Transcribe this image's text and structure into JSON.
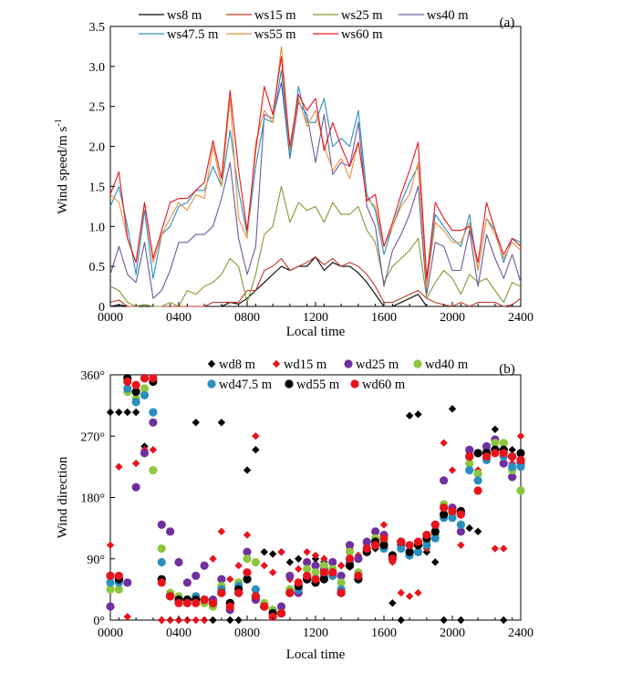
{
  "chart_data": [
    {
      "type": "line",
      "panel_label": "(a)",
      "xlabel": "Local time",
      "ylabel": "Wind speed/m s",
      "ylabel_sup": "-1",
      "x_ticks": [
        {
          "value": 0,
          "label": "0000"
        },
        {
          "value": 400,
          "label": "0400"
        },
        {
          "value": 800,
          "label": "0800"
        },
        {
          "value": 1200,
          "label": "1200"
        },
        {
          "value": 1600,
          "label": "1600"
        },
        {
          "value": 2000,
          "label": "2000"
        },
        {
          "value": 2400,
          "label": "2400"
        }
      ],
      "y_ticks": [
        "0",
        "0.5",
        "1.0",
        "1.5",
        "2.0",
        "2.5",
        "3.0",
        "3.5"
      ],
      "xlim": [
        0,
        2400
      ],
      "ylim": [
        0,
        3.5
      ],
      "legend_position": "top",
      "x": [
        0,
        50,
        100,
        150,
        200,
        250,
        300,
        350,
        400,
        450,
        500,
        550,
        600,
        650,
        700,
        750,
        800,
        850,
        900,
        950,
        1000,
        1050,
        1100,
        1150,
        1200,
        1250,
        1300,
        1350,
        1400,
        1450,
        1500,
        1550,
        1600,
        1650,
        1700,
        1750,
        1800,
        1850,
        1900,
        1950,
        2000,
        2050,
        2100,
        2150,
        2200,
        2250,
        2300,
        2350,
        2400
      ],
      "series": [
        {
          "name": "ws8 m",
          "color": "#000000",
          "values": [
            0.0,
            0.02,
            0.0,
            0.0,
            0.02,
            0.0,
            0.0,
            0.0,
            0.0,
            0.0,
            0.0,
            0.0,
            0.0,
            0.0,
            0.05,
            0.03,
            0.1,
            0.2,
            0.3,
            0.4,
            0.5,
            0.45,
            0.5,
            0.5,
            0.62,
            0.45,
            0.55,
            0.5,
            0.5,
            0.42,
            0.3,
            0.15,
            0.0,
            0.0,
            0.05,
            0.1,
            0.15,
            0.0,
            0.0,
            0.0,
            0.0,
            0.0,
            0.0,
            0.0,
            0.0,
            0.0,
            0.0,
            0.0,
            0.0
          ]
        },
        {
          "name": "ws15 m",
          "color": "#c0392b",
          "values": [
            0.05,
            0.08,
            0.0,
            0.0,
            0.02,
            0.0,
            0.0,
            0.0,
            0.0,
            0.0,
            0.0,
            0.0,
            0.05,
            0.05,
            0.05,
            0.05,
            0.2,
            0.2,
            0.45,
            0.5,
            0.6,
            0.45,
            0.5,
            0.55,
            0.62,
            0.52,
            0.6,
            0.5,
            0.55,
            0.5,
            0.4,
            0.25,
            0.05,
            0.05,
            0.1,
            0.15,
            0.2,
            0.1,
            0.05,
            0.02,
            0.0,
            0.05,
            0.0,
            0.05,
            0.05,
            0.05,
            0.0,
            0.02,
            0.1
          ]
        },
        {
          "name": "ws25 m",
          "color": "#7f9a35",
          "values": [
            0.25,
            0.2,
            0.05,
            0.0,
            0.02,
            0.0,
            0.0,
            0.05,
            0.0,
            0.2,
            0.15,
            0.25,
            0.3,
            0.4,
            0.6,
            0.5,
            0.05,
            0.4,
            0.9,
            1.0,
            1.5,
            1.05,
            1.3,
            1.2,
            1.25,
            1.05,
            1.3,
            1.15,
            1.15,
            1.25,
            0.95,
            0.8,
            0.3,
            0.5,
            0.6,
            0.7,
            0.85,
            0.1,
            0.3,
            0.45,
            0.35,
            0.15,
            0.4,
            0.3,
            0.35,
            0.2,
            0.05,
            0.3,
            0.25
          ]
        },
        {
          "name": "ws40 m",
          "color": "#6a5a9e",
          "values": [
            0.4,
            0.75,
            0.4,
            0.3,
            0.8,
            0.1,
            0.2,
            0.45,
            0.8,
            0.8,
            0.9,
            0.9,
            1.0,
            1.35,
            1.8,
            0.85,
            0.4,
            0.75,
            2.4,
            2.35,
            2.8,
            1.85,
            2.55,
            2.4,
            1.8,
            2.4,
            1.65,
            1.8,
            1.75,
            2.3,
            1.25,
            1.0,
            0.25,
            0.7,
            0.9,
            1.15,
            1.5,
            0.15,
            0.8,
            0.75,
            0.45,
            0.45,
            0.95,
            0.25,
            0.9,
            0.6,
            0.35,
            0.65,
            0.3
          ]
        },
        {
          "name": "ws47.5 m",
          "color": "#2a8fbf",
          "values": [
            1.25,
            1.5,
            1.0,
            0.4,
            1.2,
            0.35,
            0.9,
            1.0,
            1.25,
            1.3,
            1.45,
            1.45,
            1.75,
            1.5,
            2.2,
            1.45,
            0.9,
            1.75,
            2.35,
            2.3,
            2.95,
            1.85,
            2.75,
            2.3,
            2.3,
            2.6,
            2.0,
            2.1,
            2.0,
            2.45,
            1.4,
            1.2,
            0.65,
            1.0,
            1.3,
            1.55,
            1.75,
            0.3,
            1.15,
            1.0,
            0.85,
            0.75,
            1.15,
            0.45,
            1.1,
            0.95,
            0.55,
            0.85,
            0.8
          ]
        },
        {
          "name": "ws55 m",
          "color": "#e8913f",
          "values": [
            1.4,
            1.3,
            0.85,
            0.55,
            1.3,
            0.55,
            0.9,
            1.1,
            1.3,
            1.2,
            1.4,
            1.35,
            2.0,
            1.5,
            2.6,
            1.1,
            0.85,
            2.05,
            2.45,
            2.3,
            3.25,
            1.95,
            2.6,
            2.25,
            2.45,
            2.0,
            1.7,
            1.85,
            1.6,
            2.05,
            1.35,
            1.25,
            0.75,
            1.0,
            1.25,
            1.4,
            1.8,
            0.25,
            1.05,
            0.95,
            0.8,
            0.8,
            1.05,
            0.45,
            1.1,
            0.9,
            0.6,
            0.8,
            0.7
          ]
        },
        {
          "name": "ws60 m",
          "color": "#e8141c",
          "values": [
            1.4,
            1.68,
            0.85,
            0.55,
            1.3,
            0.6,
            0.95,
            1.3,
            1.35,
            1.35,
            1.45,
            1.55,
            2.07,
            1.6,
            2.7,
            1.7,
            0.95,
            1.95,
            2.75,
            2.4,
            3.12,
            2.0,
            2.65,
            2.45,
            2.6,
            1.95,
            2.3,
            2.0,
            1.75,
            2.05,
            1.32,
            1.4,
            0.75,
            1.05,
            1.4,
            1.7,
            2.05,
            0.35,
            1.3,
            1.1,
            0.95,
            0.95,
            1.0,
            0.55,
            1.3,
            0.95,
            0.65,
            0.85,
            0.75
          ]
        }
      ]
    },
    {
      "type": "scatter",
      "panel_label": "(b)",
      "xlabel": "Local time",
      "ylabel": "Wind direction",
      "x_ticks": [
        {
          "value": 0,
          "label": "0000"
        },
        {
          "value": 400,
          "label": "0400"
        },
        {
          "value": 800,
          "label": "0800"
        },
        {
          "value": 1200,
          "label": "1200"
        },
        {
          "value": 1600,
          "label": "1600"
        },
        {
          "value": 2000,
          "label": "2000"
        },
        {
          "value": 2400,
          "label": "2400"
        }
      ],
      "y_ticks": [
        "0°",
        "90°",
        "180°",
        "270°",
        "360°"
      ],
      "xlim": [
        0,
        2400
      ],
      "ylim": [
        0,
        360
      ],
      "legend_position": "top",
      "x": [
        0,
        50,
        100,
        150,
        200,
        250,
        300,
        350,
        400,
        450,
        500,
        550,
        600,
        650,
        700,
        750,
        800,
        850,
        900,
        950,
        1000,
        1050,
        1100,
        1150,
        1200,
        1250,
        1300,
        1350,
        1400,
        1450,
        1500,
        1550,
        1600,
        1650,
        1700,
        1750,
        1800,
        1850,
        1900,
        1950,
        2000,
        2050,
        2100,
        2150,
        2200,
        2250,
        2300,
        2350,
        2400
      ],
      "series": [
        {
          "name": "wd8 m",
          "marker": "diamond",
          "color": "#000000",
          "values": [
            305,
            305,
            305,
            305,
            255,
            290,
            0,
            0,
            0,
            0,
            290,
            0,
            0,
            290,
            0,
            0,
            220,
            250,
            100,
            97,
            100,
            85,
            90,
            85,
            90,
            85,
            85,
            80,
            78,
            90,
            100,
            105,
            110,
            25,
            0,
            300,
            302,
            100,
            85,
            0,
            310,
            0,
            135,
            130,
            250,
            280,
            0,
            250,
            245
          ]
        },
        {
          "name": "wd15 m",
          "marker": "diamond",
          "color": "#e8141c",
          "values": [
            110,
            225,
            5,
            230,
            250,
            250,
            0,
            0,
            0,
            0,
            0,
            0,
            90,
            130,
            60,
            80,
            125,
            270,
            80,
            70,
            100,
            60,
            75,
            100,
            95,
            90,
            75,
            80,
            105,
            95,
            110,
            115,
            140,
            85,
            40,
            35,
            40,
            105,
            125,
            260,
            220,
            110,
            245,
            220,
            245,
            105,
            105,
            230,
            270
          ]
        },
        {
          "name": "wd25 m",
          "marker": "circle",
          "color": "#7030a0",
          "values": [
            20,
            60,
            55,
            195,
            245,
            290,
            140,
            130,
            85,
            55,
            65,
            80,
            30,
            60,
            15,
            40,
            100,
            30,
            20,
            15,
            20,
            65,
            40,
            85,
            80,
            75,
            85,
            65,
            110,
            90,
            115,
            130,
            125,
            90,
            110,
            100,
            100,
            125,
            140,
            205,
            165,
            130,
            250,
            245,
            255,
            265,
            230,
            210,
            230
          ]
        },
        {
          "name": "wd40 m",
          "marker": "circle",
          "color": "#8dc63f",
          "values": [
            45,
            45,
            335,
            325,
            340,
            220,
            105,
            40,
            35,
            30,
            30,
            25,
            20,
            50,
            25,
            55,
            90,
            85,
            25,
            15,
            10,
            45,
            45,
            75,
            70,
            80,
            75,
            55,
            100,
            70,
            105,
            120,
            115,
            90,
            115,
            95,
            100,
            115,
            125,
            170,
            155,
            140,
            230,
            215,
            240,
            260,
            260,
            220,
            190
          ]
        },
        {
          "name": "wd47.5 m",
          "marker": "circle",
          "color": "#2a8fbf",
          "values": [
            55,
            55,
            340,
            320,
            330,
            305,
            85,
            35,
            30,
            30,
            35,
            30,
            25,
            45,
            25,
            50,
            60,
            45,
            20,
            10,
            10,
            40,
            45,
            60,
            60,
            65,
            65,
            45,
            85,
            65,
            100,
            110,
            105,
            90,
            105,
            95,
            100,
            110,
            120,
            150,
            150,
            140,
            220,
            205,
            235,
            250,
            240,
            225,
            225
          ]
        },
        {
          "name": "wd55 m",
          "marker": "circle",
          "color": "#000000",
          "values": [
            65,
            60,
            355,
            335,
            355,
            350,
            60,
            35,
            30,
            30,
            30,
            30,
            25,
            40,
            25,
            45,
            60,
            35,
            20,
            10,
            10,
            40,
            50,
            60,
            55,
            60,
            70,
            40,
            80,
            60,
            100,
            115,
            110,
            95,
            115,
            100,
            110,
            120,
            130,
            155,
            160,
            160,
            240,
            245,
            245,
            250,
            250,
            240,
            245
          ]
        },
        {
          "name": "wd60 m",
          "marker": "circle",
          "color": "#e8141c",
          "values": [
            65,
            65,
            350,
            345,
            355,
            355,
            55,
            35,
            25,
            25,
            25,
            30,
            25,
            40,
            20,
            40,
            70,
            35,
            20,
            5,
            10,
            40,
            55,
            65,
            60,
            70,
            70,
            40,
            90,
            65,
            105,
            110,
            120,
            90,
            115,
            110,
            115,
            125,
            140,
            165,
            160,
            155,
            240,
            190,
            240,
            245,
            245,
            240,
            235
          ]
        }
      ]
    }
  ]
}
